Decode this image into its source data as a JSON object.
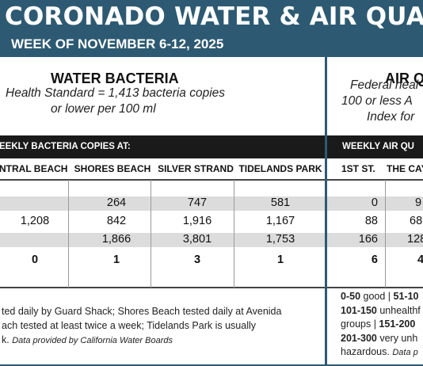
{
  "banner": {
    "title": "CORONADO WATER & AIR QUALITY R",
    "week": "WEEK OF NOVEMBER 6-12, 2025"
  },
  "water": {
    "title": "WATER BACTERIA",
    "standard_line1": "Health Standard  = 1,413 bacteria copies",
    "standard_line2": "or lower per 100 ml",
    "bar_label": "EEKLY BACTERIA COPIES AT:",
    "columns": [
      "NTRAL BEACH",
      "SHORES BEACH",
      "SILVER STRAND",
      "TIDELANDS PARK"
    ],
    "rows": [
      [
        "",
        "264",
        "747",
        "581"
      ],
      [
        "1,208",
        "842",
        "1,916",
        "1,167"
      ],
      [
        "",
        "1,866",
        "3,801",
        "1,753"
      ]
    ],
    "totals": [
      "0",
      "1",
      "3",
      "1"
    ],
    "footnote_line1": "ted daily by Guard Shack; Shores Beach tested daily at Avenida",
    "footnote_line2": "ach tested at least twice a week; Tidelands Park is usually",
    "footnote_line3_plain": "k. ",
    "footnote_source": "Data provided by California Water Boards"
  },
  "air": {
    "title": "AIR Q",
    "standard_line1": "Federal heal",
    "standard_line2": "100 or less A",
    "standard_line3": "Index for",
    "bar_label": "WEEKLY AIR QU",
    "columns": [
      "1ST ST.",
      "THE CAY"
    ],
    "rows": [
      [
        "0",
        "9"
      ],
      [
        "88",
        "68"
      ],
      [
        "166",
        "128"
      ]
    ],
    "totals": [
      "6",
      "4"
    ],
    "legend": {
      "l1_b1": "0-50",
      "l1_t1": " good | ",
      "l1_b2": "51-10",
      "l2_b1": "101-150",
      "l2_t1": " unhealthf",
      "l3_t1": "groups | ",
      "l3_b1": "151-200",
      "l4_b1": "201-300",
      "l4_t1": " very unh",
      "l5_t1": "hazardous. ",
      "l5_src": "Data p"
    }
  },
  "colors": {
    "banner": "#2d5a72",
    "header_bar": "#1a1a1a",
    "row_band": "#dcdcdc"
  }
}
